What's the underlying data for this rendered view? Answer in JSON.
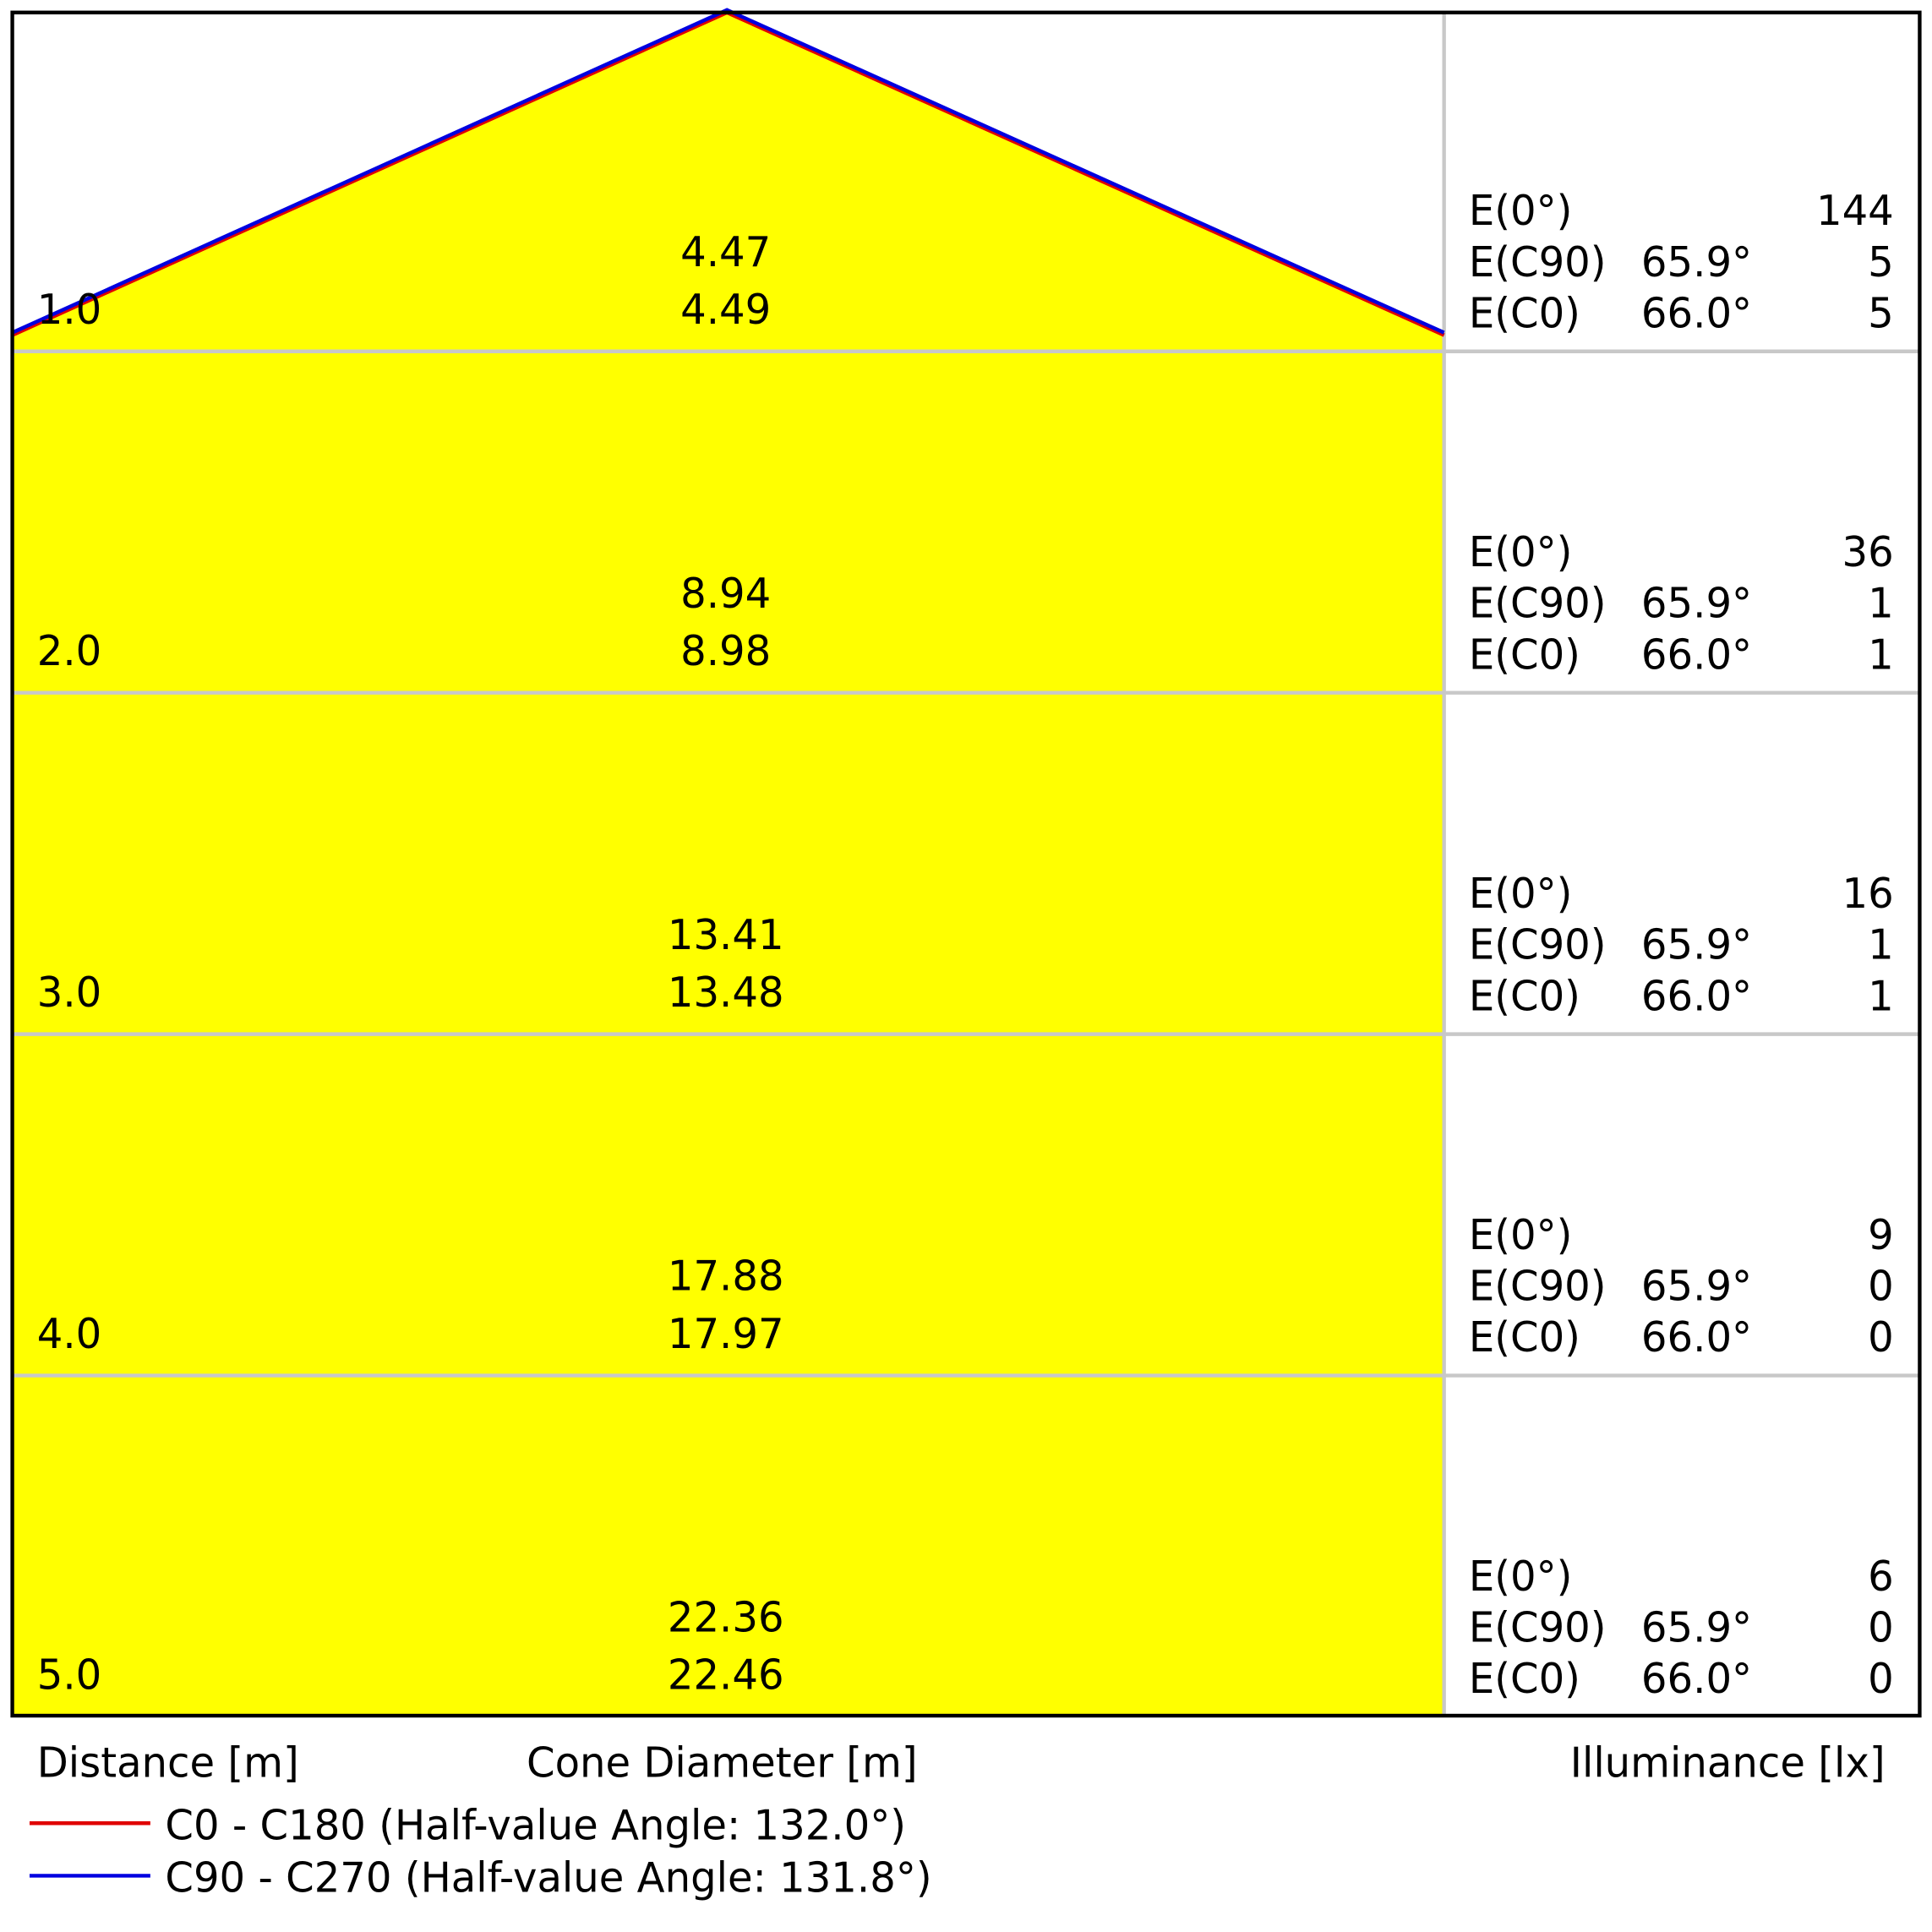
{
  "rows": [
    {
      "distance": "1.0",
      "diameter_c90": "4.47",
      "diameter_c0": "4.49",
      "e0_label": "E(0°)",
      "e0": "144",
      "ec90_label": "E(C90)",
      "ec90_angle": "65.9°",
      "ec90": "5",
      "ec0_label": "E(C0)",
      "ec0_angle": "66.0°",
      "ec0": "5"
    },
    {
      "distance": "2.0",
      "diameter_c90": "8.94",
      "diameter_c0": "8.98",
      "e0_label": "E(0°)",
      "e0": "36",
      "ec90_label": "E(C90)",
      "ec90_angle": "65.9°",
      "ec90": "1",
      "ec0_label": "E(C0)",
      "ec0_angle": "66.0°",
      "ec0": "1"
    },
    {
      "distance": "3.0",
      "diameter_c90": "13.41",
      "diameter_c0": "13.48",
      "e0_label": "E(0°)",
      "e0": "16",
      "ec90_label": "E(C90)",
      "ec90_angle": "65.9°",
      "ec90": "1",
      "ec0_label": "E(C0)",
      "ec0_angle": "66.0°",
      "ec0": "1"
    },
    {
      "distance": "4.0",
      "diameter_c90": "17.88",
      "diameter_c0": "17.97",
      "e0_label": "E(0°)",
      "e0": "9",
      "ec90_label": "E(C90)",
      "ec90_angle": "65.9°",
      "ec90": "0",
      "ec0_label": "E(C0)",
      "ec0_angle": "66.0°",
      "ec0": "0"
    },
    {
      "distance": "5.0",
      "diameter_c90": "22.36",
      "diameter_c0": "22.46",
      "e0_label": "E(0°)",
      "e0": "6",
      "ec90_label": "E(C90)",
      "ec90_angle": "65.9°",
      "ec90": "0",
      "ec0_label": "E(C0)",
      "ec0_angle": "66.0°",
      "ec0": "0"
    }
  ],
  "labels": {
    "distance": "Distance [m]",
    "cone": "Cone Diameter [m]",
    "illuminance": "Illuminance [lx]"
  },
  "legend": [
    {
      "name": "C0 - C180 (Half-value Angle: 132.0°)",
      "color": "#e00000"
    },
    {
      "name": "C90 - C270 (Half-value Angle: 131.8°)",
      "color": "#0000e0"
    }
  ]
}
